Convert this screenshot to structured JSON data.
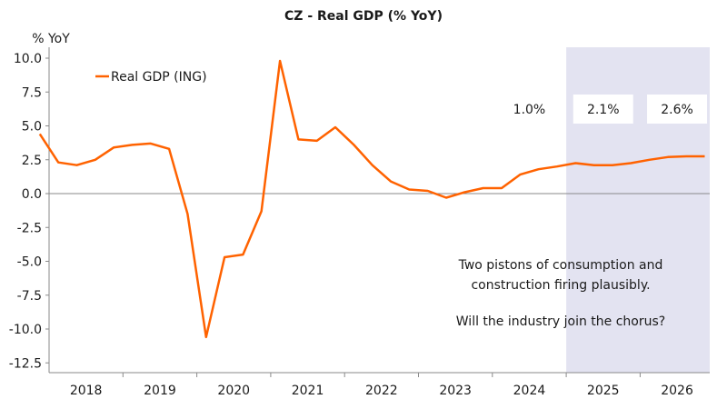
{
  "chart_data": {
    "type": "line",
    "title": "CZ - Real GDP (% YoY)",
    "y_unit": "% YoY",
    "ylim": [
      -13.3,
      10.5
    ],
    "y_ticks": [
      "10.0",
      "7.5",
      "5.0",
      "2.5",
      "0.0",
      "-2.5",
      "-5.0",
      "-7.5",
      "-10.0",
      "-12.5"
    ],
    "y_tick_values": [
      10,
      7.5,
      5,
      2.5,
      0,
      -2.5,
      -5,
      -7.5,
      -10,
      -12.5
    ],
    "x_categories": [
      "2018",
      "2019",
      "2020",
      "2021",
      "2022",
      "2023",
      "2024",
      "2025",
      "2026"
    ],
    "grid": false,
    "legend_position": "top-left",
    "forecast_shading": {
      "from_quarter": "2025Q1",
      "to_quarter": "2026Q4",
      "color": "#e3e3f1"
    },
    "series": [
      {
        "name": "Real GDP (ING)",
        "color": "#ff6200",
        "x": [
          "2017Q4",
          "2018Q1",
          "2018Q2",
          "2018Q3",
          "2018Q4",
          "2019Q1",
          "2019Q2",
          "2019Q3",
          "2019Q4",
          "2020Q1",
          "2020Q2",
          "2020Q3",
          "2020Q4",
          "2021Q1",
          "2021Q2",
          "2021Q3",
          "2021Q4",
          "2022Q1",
          "2022Q2",
          "2022Q3",
          "2022Q4",
          "2023Q1",
          "2023Q2",
          "2023Q3",
          "2023Q4",
          "2024Q1",
          "2024Q2",
          "2024Q3",
          "2024Q4",
          "2025Q1",
          "2025Q2",
          "2025Q3",
          "2025Q4",
          "2026Q1",
          "2026Q2",
          "2026Q3",
          "2026Q4"
        ],
        "values": [
          4.4,
          2.3,
          2.1,
          2.5,
          3.4,
          3.6,
          3.7,
          3.3,
          -1.5,
          -10.6,
          -4.7,
          -4.5,
          -1.3,
          9.8,
          4.0,
          3.9,
          4.9,
          3.6,
          2.1,
          0.9,
          0.3,
          0.2,
          -0.3,
          0.1,
          0.4,
          0.4,
          1.4,
          1.8,
          2.0,
          2.25,
          2.1,
          2.1,
          2.25,
          2.5,
          2.7,
          2.75,
          2.75
        ]
      }
    ],
    "annual_labels": [
      {
        "text": "1.0%",
        "year": "2024",
        "boxed": false
      },
      {
        "text": "2.1%",
        "year": "2025",
        "boxed": true
      },
      {
        "text": "2.6%",
        "year": "2026",
        "boxed": true
      }
    ],
    "annotation": {
      "line1": "Two pistons of consumption and",
      "line2": "construction firing plausibly.",
      "line3": "Will the industry join the chorus?"
    }
  }
}
